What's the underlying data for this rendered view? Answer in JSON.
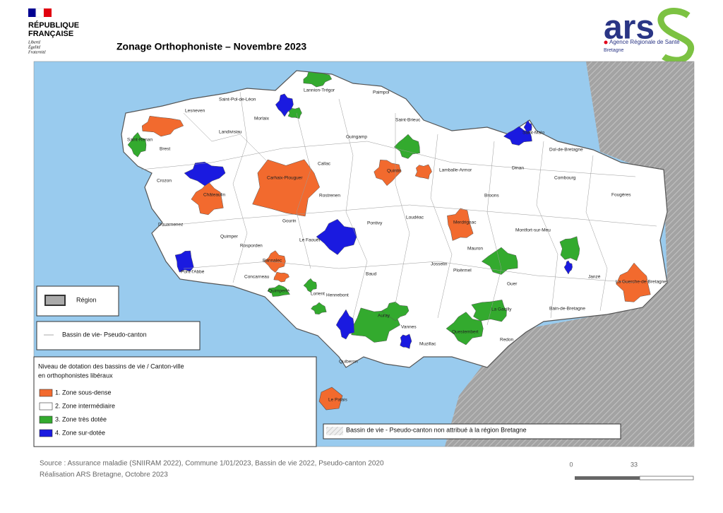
{
  "header": {
    "republic": [
      "RÉPUBLIQUE",
      "FRANÇAISE"
    ],
    "motto": [
      "Liberté",
      "Égalité",
      "Fraternité"
    ],
    "title": "Zonage Orthophoniste – Novembre 2023",
    "ars_logo": "ars",
    "ars_name": "Agence Régionale de Santé",
    "ars_region": "Bretagne"
  },
  "legend": {
    "region": "Région",
    "boundary": "Bassin de vie- Pseudo-canton",
    "title": [
      "Niveau de dotation des bassins de vie / Canton-ville",
      "en orthophonistes libéraux"
    ],
    "items": [
      {
        "label": "1. Zone sous-dense",
        "color": "#f26a2e"
      },
      {
        "label": "2. Zone intermédiaire",
        "color": "#ffffff"
      },
      {
        "label": "3. Zone très dotée",
        "color": "#33aa2e"
      },
      {
        "label": "4. Zone sur-dotée",
        "color": "#1a1ae0"
      }
    ],
    "unassigned": "Bassin de vie - Pseudo-canton non attribué à la région Bretagne"
  },
  "map": {
    "places": [
      "Lannion-Trégor",
      "Paimpol",
      "Saint-Pol-de-Léon",
      "Morlaix",
      "Landivisiau",
      "Lesneven",
      "Brest",
      "Crozon",
      "Châteaulin",
      "Douarnenez",
      "Quimper",
      "Pont-l'Abbé",
      "Concarneau",
      "Quimperlé",
      "Bannalec",
      "Rosporden",
      "Carhaix-Plouguer",
      "Callac",
      "Guingamp",
      "Saint-Brieuc",
      "Rostrenen",
      "Loudéac",
      "Pontivy",
      "Gourin",
      "Le Faouët",
      "Baud",
      "Hennebont",
      "Auray",
      "Vannes",
      "Quiberon",
      "Le Palais",
      "Ploërmel",
      "Josselin",
      "Questembert",
      "La Gacilly",
      "Redon",
      "Muzillac",
      "Dinan",
      "Saint-Malo",
      "Dol-de-Bretagne",
      "Combourg",
      "Fougères",
      "Montfort-sur-Meu",
      "Janzé",
      "Bain-de-Bretagne",
      "Guer",
      "Mauron",
      "Merdrignac",
      "Broons",
      "Lamballe-Armor",
      "Quintin",
      "La Guerche-de-Bretagne",
      "Saint-Renan",
      "Lorient"
    ]
  },
  "scale": {
    "labels": [
      "0",
      "33"
    ]
  },
  "footer": {
    "source": "Source : Assurance maladie (SNIIRAM 2022), Commune 1/01/2023, Bassin de vie 2022, Pseudo-canton 2020",
    "credit": "Réalisation ARS Bretagne, Octobre 2023"
  }
}
